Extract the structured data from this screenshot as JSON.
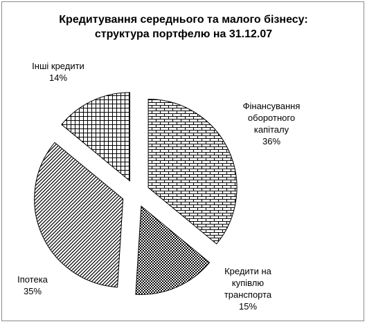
{
  "chart_data": {
    "type": "pie",
    "title": [
      "Кредитування середнього та малого бізнесу:",
      "структура портфелю на 31.12.07"
    ],
    "slices": [
      {
        "label": [
          "Фінансування",
          "оборотного",
          "капіталу"
        ],
        "value": 36,
        "value_text": "36%",
        "pattern": "brick"
      },
      {
        "label": [
          "Кредити на",
          "купівлю",
          "транспорта"
        ],
        "value": 15,
        "value_text": "15%",
        "pattern": "checker"
      },
      {
        "label": [
          "Іпотека"
        ],
        "value": 35,
        "value_text": "35%",
        "pattern": "diagonal"
      },
      {
        "label": [
          "Інші кредити"
        ],
        "value": 14,
        "value_text": "14%",
        "pattern": "grid"
      }
    ],
    "legend": "none",
    "exploded": true
  }
}
